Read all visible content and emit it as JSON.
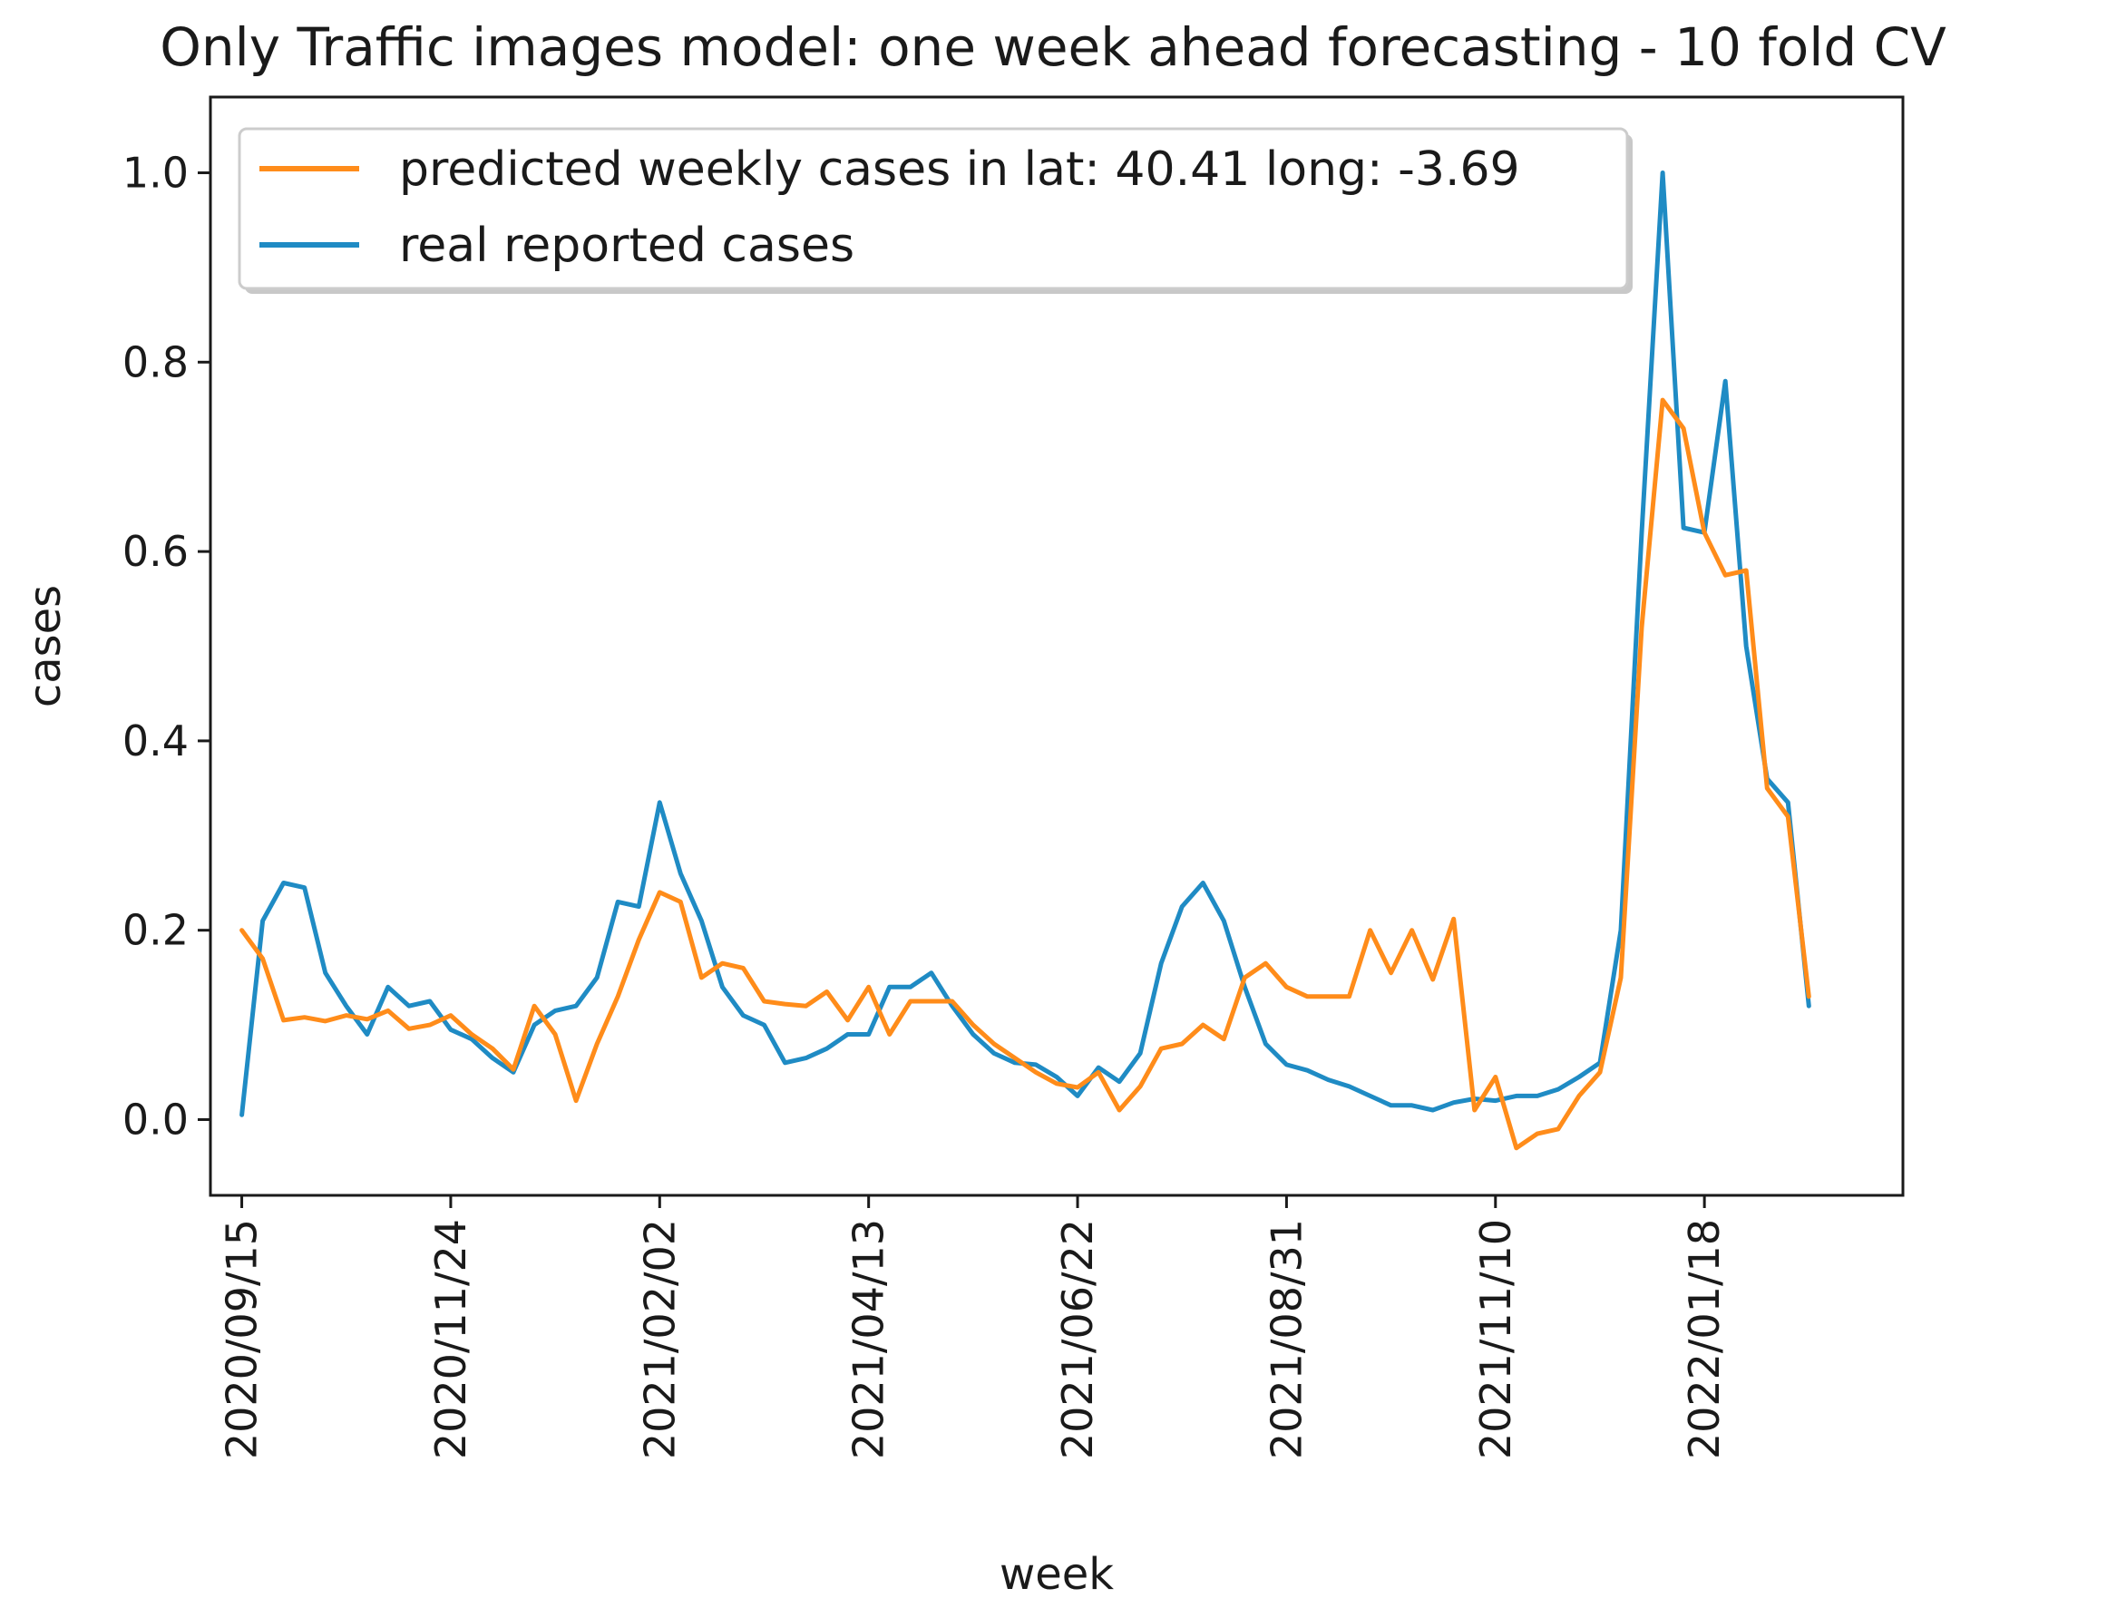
{
  "chart_data": {
    "type": "line",
    "title": "Only Traffic images model: one week ahead forecasting - 10 fold CV",
    "xlabel": "week",
    "ylabel": "cases",
    "ylim": [
      -0.08,
      1.08
    ],
    "x_range": [
      -1.5,
      79.5
    ],
    "grid": false,
    "legend_position": "top-left",
    "x_ticks": [
      {
        "index": 0,
        "label": "2020/09/15"
      },
      {
        "index": 10,
        "label": "2020/11/24"
      },
      {
        "index": 20,
        "label": "2021/02/02"
      },
      {
        "index": 30,
        "label": "2021/04/13"
      },
      {
        "index": 40,
        "label": "2021/06/22"
      },
      {
        "index": 50,
        "label": "2021/08/31"
      },
      {
        "index": 60,
        "label": "2021/11/10"
      },
      {
        "index": 70,
        "label": "2022/01/18"
      }
    ],
    "y_ticks": [
      {
        "value": 0.0,
        "label": "0.0"
      },
      {
        "value": 0.2,
        "label": "0.2"
      },
      {
        "value": 0.4,
        "label": "0.4"
      },
      {
        "value": 0.6,
        "label": "0.6"
      },
      {
        "value": 0.8,
        "label": "0.8"
      },
      {
        "value": 1.0,
        "label": "1.0"
      }
    ],
    "series": [
      {
        "name": "predicted weekly cases in lat: 40.41 long: -3.69",
        "color": "#ff8c1a",
        "values": [
          0.2,
          0.17,
          0.105,
          0.108,
          0.104,
          0.11,
          0.106,
          0.115,
          0.096,
          0.1,
          0.11,
          0.09,
          0.075,
          0.053,
          0.12,
          0.09,
          0.02,
          0.08,
          0.13,
          0.19,
          0.24,
          0.23,
          0.15,
          0.165,
          0.16,
          0.125,
          0.122,
          0.12,
          0.135,
          0.105,
          0.14,
          0.09,
          0.125,
          0.125,
          0.125,
          0.1,
          0.08,
          0.065,
          0.05,
          0.038,
          0.034,
          0.05,
          0.01,
          0.035,
          0.075,
          0.08,
          0.1,
          0.085,
          0.15,
          0.165,
          0.14,
          0.13,
          0.13,
          0.13,
          0.2,
          0.155,
          0.2,
          0.148,
          0.212,
          0.01,
          0.045,
          -0.03,
          -0.015,
          -0.01,
          0.025,
          0.05,
          0.15,
          0.52,
          0.76,
          0.73,
          0.62,
          0.575,
          0.58,
          0.35,
          0.32,
          0.13
        ]
      },
      {
        "name": "real reported cases",
        "color": "#1f8bc4",
        "values": [
          0.005,
          0.21,
          0.25,
          0.245,
          0.155,
          0.12,
          0.09,
          0.14,
          0.12,
          0.125,
          0.095,
          0.085,
          0.065,
          0.05,
          0.1,
          0.115,
          0.12,
          0.15,
          0.23,
          0.225,
          0.335,
          0.26,
          0.21,
          0.14,
          0.11,
          0.1,
          0.06,
          0.065,
          0.075,
          0.09,
          0.09,
          0.14,
          0.14,
          0.155,
          0.12,
          0.09,
          0.07,
          0.06,
          0.058,
          0.045,
          0.025,
          0.055,
          0.04,
          0.07,
          0.165,
          0.225,
          0.25,
          0.21,
          0.14,
          0.08,
          0.058,
          0.052,
          0.042,
          0.035,
          0.025,
          0.015,
          0.015,
          0.01,
          0.018,
          0.022,
          0.02,
          0.025,
          0.025,
          0.032,
          0.045,
          0.06,
          0.2,
          0.62,
          1.0,
          0.625,
          0.62,
          0.78,
          0.5,
          0.36,
          0.335,
          0.12
        ]
      }
    ]
  }
}
